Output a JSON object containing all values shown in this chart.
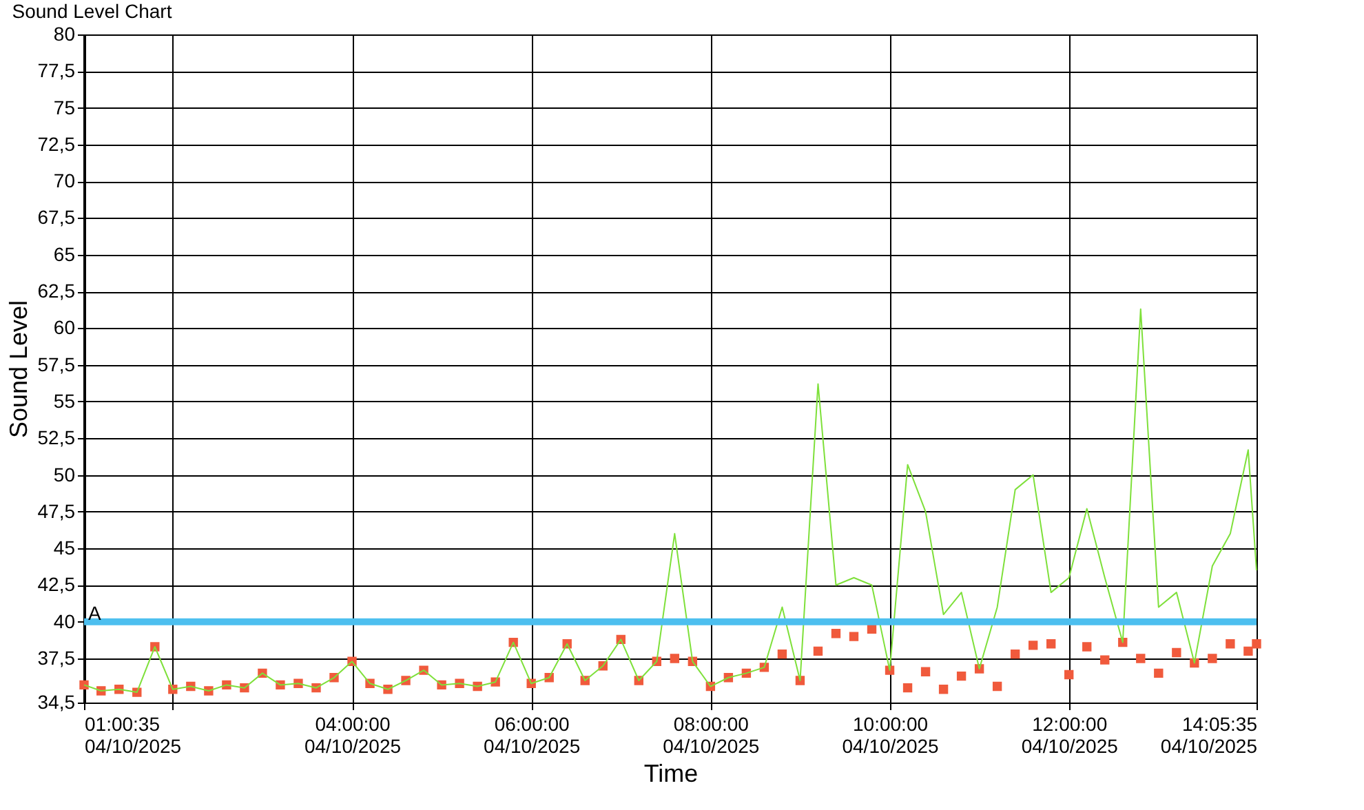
{
  "chart_data": {
    "type": "line",
    "title": "Sound Level Chart",
    "xlabel": "Time",
    "ylabel": "Sound Level",
    "x": [
      "2025-04-10T01:00:35",
      "2025-04-10T01:12",
      "2025-04-10T01:24",
      "2025-04-10T01:36",
      "2025-04-10T01:48",
      "2025-04-10T02:00",
      "2025-04-10T02:12",
      "2025-04-10T02:24",
      "2025-04-10T02:36",
      "2025-04-10T02:48",
      "2025-04-10T03:00",
      "2025-04-10T03:12",
      "2025-04-10T03:24",
      "2025-04-10T03:36",
      "2025-04-10T03:48",
      "2025-04-10T04:00",
      "2025-04-10T04:12",
      "2025-04-10T04:24",
      "2025-04-10T04:36",
      "2025-04-10T04:48",
      "2025-04-10T05:00",
      "2025-04-10T05:12",
      "2025-04-10T05:24",
      "2025-04-10T05:36",
      "2025-04-10T05:48",
      "2025-04-10T06:00",
      "2025-04-10T06:12",
      "2025-04-10T06:24",
      "2025-04-10T06:36",
      "2025-04-10T06:48",
      "2025-04-10T07:00",
      "2025-04-10T07:12",
      "2025-04-10T07:24",
      "2025-04-10T07:36",
      "2025-04-10T07:48",
      "2025-04-10T08:00",
      "2025-04-10T08:12",
      "2025-04-10T08:24",
      "2025-04-10T08:36",
      "2025-04-10T08:48",
      "2025-04-10T09:00",
      "2025-04-10T09:12",
      "2025-04-10T09:24",
      "2025-04-10T09:36",
      "2025-04-10T09:48",
      "2025-04-10T10:00",
      "2025-04-10T10:12",
      "2025-04-10T10:24",
      "2025-04-10T10:36",
      "2025-04-10T10:48",
      "2025-04-10T11:00",
      "2025-04-10T11:12",
      "2025-04-10T11:24",
      "2025-04-10T11:36",
      "2025-04-10T11:48",
      "2025-04-10T12:00",
      "2025-04-10T12:12",
      "2025-04-10T12:24",
      "2025-04-10T12:36",
      "2025-04-10T12:48",
      "2025-04-10T13:00",
      "2025-04-10T13:12",
      "2025-04-10T13:24",
      "2025-04-10T13:36",
      "2025-04-10T13:48",
      "2025-04-10T14:00",
      "2025-04-10T14:05:35"
    ],
    "series": [
      {
        "type": "scatter",
        "marker": "square",
        "color": "#f05a3c",
        "values": [
          35.7,
          35.3,
          35.4,
          35.2,
          38.3,
          35.4,
          35.6,
          35.3,
          35.7,
          35.5,
          36.5,
          35.7,
          35.8,
          35.5,
          36.2,
          37.3,
          35.8,
          35.4,
          36.0,
          36.7,
          35.7,
          35.8,
          35.6,
          35.9,
          38.6,
          35.8,
          36.2,
          38.5,
          36.0,
          37.0,
          38.8,
          36.0,
          37.3,
          37.5,
          37.3,
          35.6,
          36.2,
          36.5,
          36.9,
          37.8,
          36.0,
          38.0,
          39.2,
          39.0,
          39.5,
          36.7,
          35.5,
          36.6,
          35.4,
          36.3,
          36.8,
          35.6,
          37.8,
          38.4,
          38.5,
          36.4,
          38.3,
          37.4,
          38.6,
          37.5,
          36.5,
          37.9,
          37.2,
          37.5,
          38.5,
          38.0,
          38.5
        ]
      },
      {
        "color": "#7ee03a",
        "values": [
          35.7,
          35.3,
          35.4,
          35.2,
          38.3,
          35.4,
          35.6,
          35.3,
          35.7,
          35.5,
          36.5,
          35.7,
          35.8,
          35.5,
          36.2,
          37.3,
          35.8,
          35.4,
          36.0,
          36.7,
          35.7,
          35.8,
          35.6,
          35.9,
          38.6,
          35.8,
          36.2,
          38.5,
          36.0,
          37.0,
          38.8,
          36.0,
          37.3,
          46.0,
          37.3,
          35.6,
          36.2,
          36.5,
          36.9,
          41.0,
          36.0,
          56.2,
          42.5,
          43.0,
          42.5,
          36.7,
          50.7,
          47.5,
          40.5,
          42.0,
          36.8,
          41.0,
          49.0,
          50.0,
          42.0,
          43.0,
          47.7,
          43.0,
          38.6,
          61.3,
          41.0,
          42.0,
          37.2,
          43.8,
          46.0,
          51.7,
          43.5
        ]
      }
    ],
    "xlim": [
      "2025-04-10T01:00:35",
      "2025-04-10T14:05:35"
    ],
    "xticks": [
      {
        "value": "2025-04-10T01:00:35",
        "label": "01:00:35\n04/10/2025"
      },
      {
        "value": "2025-04-10T02:00",
        "label": null
      },
      {
        "value": "2025-04-10T04:00",
        "label": "04:00:00\n04/10/2025"
      },
      {
        "value": "2025-04-10T06:00",
        "label": "06:00:00\n04/10/2025"
      },
      {
        "value": "2025-04-10T08:00",
        "label": "08:00:00\n04/10/2025"
      },
      {
        "value": "2025-04-10T10:00",
        "label": "10:00:00\n04/10/2025"
      },
      {
        "value": "2025-04-10T12:00",
        "label": "12:00:00\n04/10/2025"
      },
      {
        "value": "2025-04-10T14:05:35",
        "label": "14:05:35\n04/10/2025"
      }
    ],
    "ylim": [
      34.5,
      80
    ],
    "yticks": [
      {
        "value": 34.5,
        "label": "34,5"
      },
      {
        "value": 37.5,
        "label": "37,5"
      },
      40,
      {
        "value": 42.5,
        "label": "42,5"
      },
      45,
      {
        "value": 47.5,
        "label": "47,5"
      },
      50,
      {
        "value": 52.5,
        "label": "52,5"
      },
      55,
      {
        "value": 57.5,
        "label": "57,5"
      },
      60,
      {
        "value": 62.5,
        "label": "62,5"
      },
      65,
      {
        "value": 67.5,
        "label": "67,5"
      },
      70,
      {
        "value": 72.5,
        "label": "72,5"
      },
      75,
      {
        "value": 77.5,
        "label": "77,5"
      },
      80
    ],
    "ref_lines": [
      {
        "axis": "y",
        "value": 40,
        "color": "#4dbfef"
      }
    ],
    "annotations": [
      "A"
    ],
    "grid": true
  }
}
